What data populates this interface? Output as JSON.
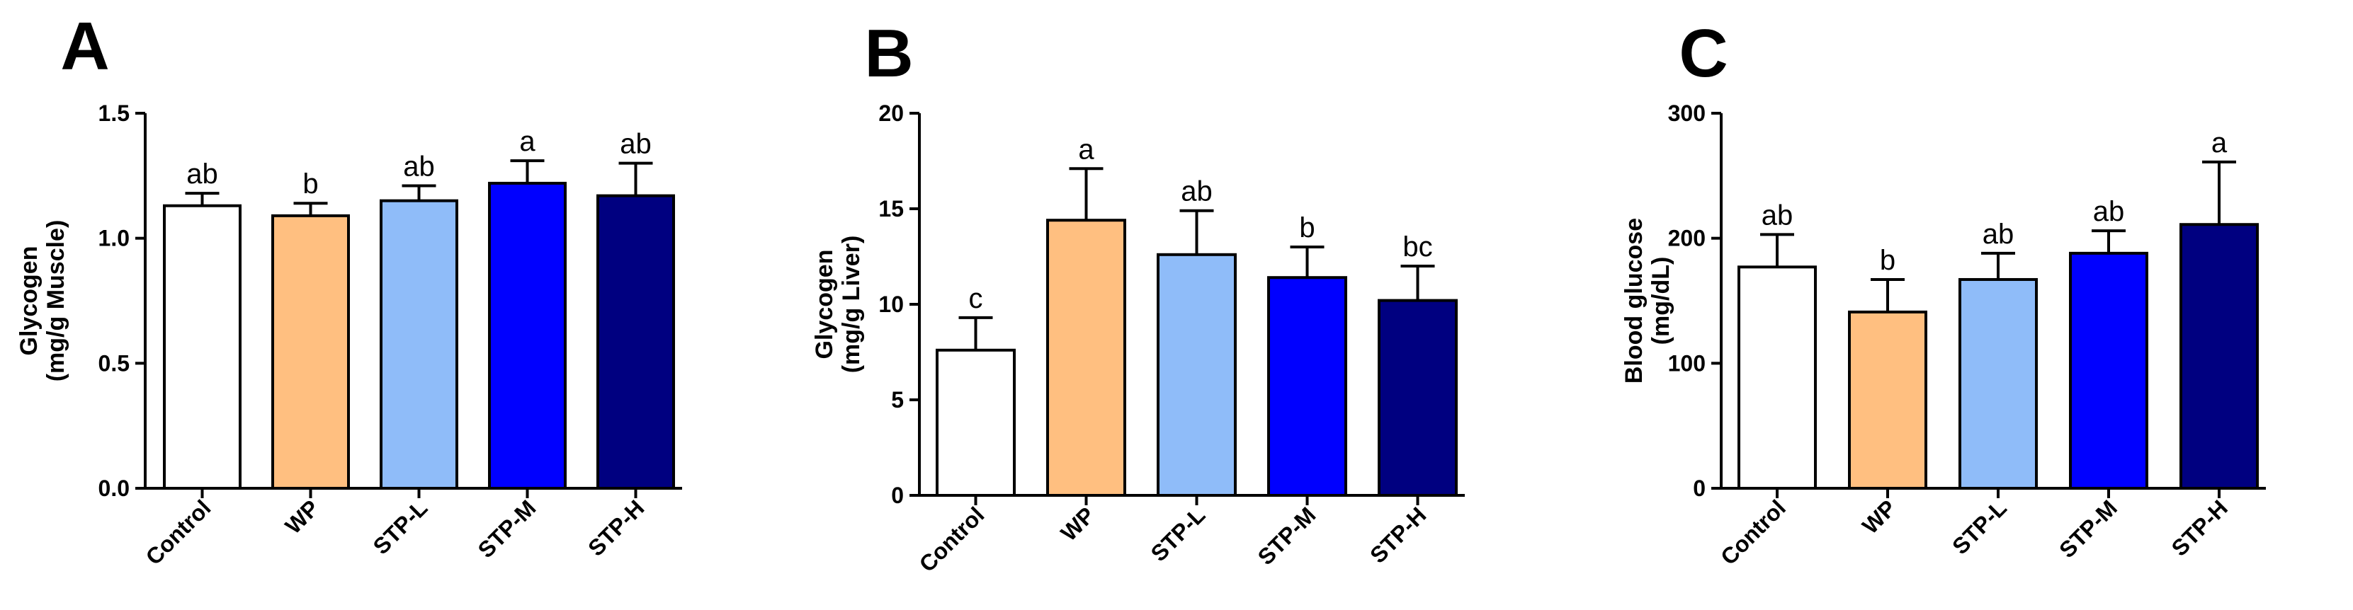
{
  "chart_data": [
    {
      "type": "bar",
      "panel": "A",
      "ylabel_line1": "Glycogen",
      "ylabel_line2": "(mg/g Muscle)",
      "ylim": [
        0,
        1.5
      ],
      "yticks": [
        "0.0",
        "0.5",
        "1.0",
        "1.5"
      ],
      "ytick_values": [
        0,
        0.5,
        1.0,
        1.5
      ],
      "categories": [
        "Control",
        "WP",
        "STP-L",
        "STP-M",
        "STP-H"
      ],
      "values": [
        1.13,
        1.09,
        1.15,
        1.22,
        1.17
      ],
      "errors": [
        0.05,
        0.05,
        0.06,
        0.09,
        0.13
      ],
      "significance": [
        "ab",
        "b",
        "ab",
        "a",
        "ab"
      ],
      "colors": [
        "#ffffff",
        "#ffbf80",
        "#8fbcf9",
        "#0000ff",
        "#000080"
      ]
    },
    {
      "type": "bar",
      "panel": "B",
      "ylabel_line1": "Glycogen",
      "ylabel_line2": "(mg/g Liver)",
      "ylim": [
        0,
        20
      ],
      "yticks": [
        "0",
        "5",
        "10",
        "15",
        "20"
      ],
      "ytick_values": [
        0,
        5,
        10,
        15,
        20
      ],
      "categories": [
        "Control",
        "WP",
        "STP-L",
        "STP-M",
        "STP-H"
      ],
      "values": [
        7.6,
        14.4,
        12.6,
        11.4,
        10.2
      ],
      "errors": [
        1.7,
        2.7,
        2.3,
        1.6,
        1.8
      ],
      "significance": [
        "c",
        "a",
        "ab",
        "b",
        "bc"
      ],
      "colors": [
        "#ffffff",
        "#ffbf80",
        "#8fbcf9",
        "#0000ff",
        "#000080"
      ]
    },
    {
      "type": "bar",
      "panel": "C",
      "ylabel_line1": "Blood glucose",
      "ylabel_line2": "(mg/dL)",
      "ylim": [
        0,
        300
      ],
      "yticks": [
        "0",
        "100",
        "200",
        "300"
      ],
      "ytick_values": [
        0,
        100,
        200,
        300
      ],
      "categories": [
        "Control",
        "WP",
        "STP-L",
        "STP-M",
        "STP-H"
      ],
      "values": [
        177,
        141,
        167,
        188,
        211
      ],
      "errors": [
        26,
        26,
        21,
        18,
        50
      ],
      "significance": [
        "ab",
        "b",
        "ab",
        "ab",
        "a"
      ],
      "colors": [
        "#ffffff",
        "#ffbf80",
        "#8fbcf9",
        "#0000ff",
        "#000080"
      ]
    }
  ]
}
